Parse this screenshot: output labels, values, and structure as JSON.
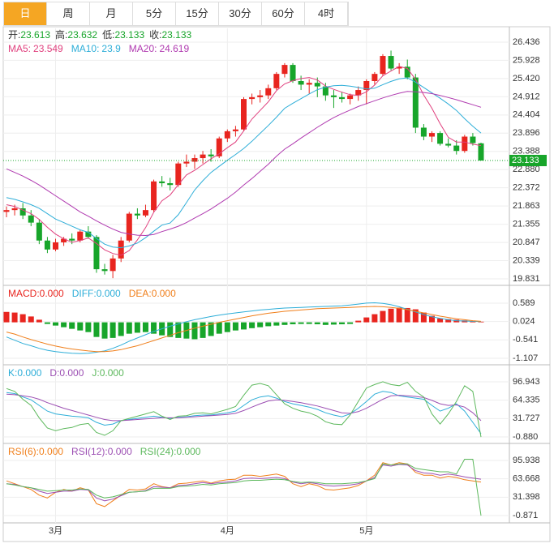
{
  "tabs": [
    "日",
    "周",
    "月",
    "5分",
    "15分",
    "30分",
    "60分",
    "4时"
  ],
  "selected_tab": 0,
  "chart_data": [
    {
      "type": "candlestick",
      "categories": [
        null,
        null,
        null,
        null,
        null,
        null,
        "3月",
        null,
        null,
        null,
        null,
        null,
        null,
        null,
        null,
        null,
        null,
        null,
        null,
        null,
        null,
        null,
        null,
        null,
        null,
        null,
        null,
        "4月",
        null,
        null,
        null,
        null,
        null,
        null,
        null,
        null,
        null,
        null,
        null,
        null,
        null,
        null,
        null,
        null,
        "5月",
        null,
        null,
        null,
        null,
        null,
        null,
        null,
        null,
        null,
        null,
        null,
        null,
        null,
        null
      ],
      "ohlc_labels": [
        "开:",
        "高:",
        "低:",
        "收:"
      ],
      "open": [
        21.7,
        21.75,
        21.8,
        21.6,
        21.4,
        20.9,
        20.65,
        20.85,
        20.95,
        20.9,
        21.15,
        21.0,
        20.1,
        20.05,
        20.4,
        20.9,
        21.65,
        21.6,
        21.75,
        22.55,
        22.5,
        22.45,
        23.05,
        23.1,
        23.2,
        23.3,
        23.25,
        23.75,
        23.95,
        24.0,
        24.85,
        24.9,
        24.95,
        25.15,
        25.55,
        25.8,
        25.35,
        25.25,
        25.3,
        25.2,
        24.95,
        24.9,
        24.85,
        24.95,
        25.1,
        25.35,
        25.55,
        26.05,
        25.7,
        25.75,
        25.45,
        24.05,
        23.8,
        23.9,
        23.6,
        23.55,
        23.4,
        23.8,
        23.613
      ],
      "high": [
        21.85,
        21.9,
        21.95,
        21.75,
        21.5,
        21.0,
        20.95,
        21.0,
        21.1,
        21.2,
        21.3,
        21.05,
        20.25,
        20.5,
        21.0,
        21.7,
        21.8,
        21.9,
        22.6,
        22.7,
        22.65,
        23.1,
        23.3,
        23.3,
        23.4,
        23.45,
        23.8,
        24.0,
        24.1,
        24.9,
        25.0,
        25.1,
        25.25,
        25.6,
        25.85,
        25.85,
        25.5,
        25.4,
        25.45,
        25.3,
        25.1,
        25.05,
        25.0,
        25.2,
        25.4,
        25.6,
        26.1,
        26.2,
        25.85,
        25.95,
        25.55,
        24.15,
        23.95,
        23.95,
        23.75,
        23.7,
        23.85,
        23.9,
        23.632
      ],
      "low": [
        21.55,
        21.6,
        21.5,
        21.3,
        20.8,
        20.55,
        20.6,
        20.75,
        20.8,
        20.85,
        20.95,
        20.0,
        19.95,
        19.85,
        20.3,
        20.85,
        21.5,
        21.55,
        21.7,
        22.4,
        22.3,
        22.4,
        22.95,
        22.9,
        23.05,
        23.1,
        23.2,
        23.65,
        23.8,
        23.95,
        24.7,
        24.75,
        24.85,
        25.1,
        25.45,
        25.3,
        25.1,
        25.0,
        24.9,
        24.8,
        24.6,
        24.75,
        24.7,
        24.8,
        24.7,
        25.25,
        25.5,
        25.65,
        25.55,
        25.4,
        23.9,
        23.7,
        23.65,
        23.55,
        23.5,
        23.3,
        23.35,
        23.55,
        23.133
      ],
      "close": [
        21.75,
        21.8,
        21.6,
        21.4,
        20.9,
        20.65,
        20.85,
        20.95,
        20.9,
        21.15,
        21.0,
        20.1,
        20.05,
        20.4,
        20.9,
        21.65,
        21.6,
        21.75,
        22.55,
        22.5,
        22.45,
        23.05,
        23.1,
        23.2,
        23.3,
        23.25,
        23.75,
        23.95,
        24.0,
        24.85,
        24.9,
        24.95,
        25.15,
        25.55,
        25.8,
        25.35,
        25.25,
        25.3,
        25.2,
        24.95,
        24.9,
        24.85,
        24.95,
        25.1,
        25.35,
        25.55,
        26.05,
        25.7,
        25.75,
        25.45,
        24.05,
        23.8,
        23.9,
        23.6,
        23.55,
        23.4,
        23.8,
        23.62,
        23.133
      ],
      "up_color": "#e8251f",
      "down_color": "#17a52a",
      "series": [
        {
          "name": "MA5:",
          "color": "#e0407e",
          "values": [
            21.9,
            21.85,
            21.75,
            21.65,
            21.49,
            21.27,
            21.08,
            20.95,
            20.85,
            20.9,
            20.97,
            20.82,
            20.64,
            20.54,
            20.49,
            20.62,
            20.92,
            21.26,
            21.69,
            22.01,
            22.17,
            22.46,
            22.73,
            22.86,
            23.02,
            23.18,
            23.32,
            23.49,
            23.65,
            23.96,
            24.29,
            24.53,
            24.77,
            25.08,
            25.27,
            25.36,
            25.42,
            25.45,
            25.38,
            25.21,
            25.12,
            25.04,
            24.97,
            24.95,
            25.05,
            25.24,
            25.5,
            25.63,
            25.76,
            25.7,
            25.4,
            24.96,
            24.59,
            24.16,
            23.78,
            23.65,
            23.65,
            23.59,
            23.549
          ]
        },
        {
          "name": "MA10:",
          "color": "#2eaed8",
          "values": [
            22.1,
            22.05,
            21.98,
            21.9,
            21.8,
            21.65,
            21.5,
            21.4,
            21.3,
            21.2,
            21.13,
            20.96,
            20.8,
            20.72,
            20.7,
            20.75,
            20.83,
            20.98,
            21.16,
            21.33,
            21.39,
            21.62,
            21.96,
            22.31,
            22.57,
            22.8,
            22.97,
            23.14,
            23.3,
            23.47,
            23.67,
            23.89,
            24.11,
            24.34,
            24.59,
            24.73,
            24.86,
            24.99,
            25.11,
            25.18,
            25.22,
            25.23,
            25.21,
            25.17,
            25.13,
            25.15,
            25.25,
            25.34,
            25.41,
            25.44,
            25.32,
            25.17,
            25.02,
            24.87,
            24.71,
            24.53,
            24.3,
            24.09,
            23.9
          ]
        },
        {
          "name": "MA20:",
          "color": "#b03ab0",
          "values": [
            22.9,
            22.8,
            22.7,
            22.58,
            22.45,
            22.3,
            22.15,
            22.0,
            21.85,
            21.7,
            21.58,
            21.45,
            21.33,
            21.22,
            21.13,
            21.08,
            21.05,
            21.04,
            21.07,
            21.15,
            21.22,
            21.3,
            21.4,
            21.53,
            21.65,
            21.78,
            21.93,
            22.08,
            22.25,
            22.45,
            22.63,
            22.83,
            23.03,
            23.25,
            23.45,
            23.6,
            23.76,
            23.91,
            24.06,
            24.2,
            24.33,
            24.44,
            24.54,
            24.64,
            24.72,
            24.8,
            24.88,
            24.95,
            25.01,
            25.06,
            25.05,
            25.03,
            25.0,
            24.95,
            24.89,
            24.83,
            24.76,
            24.69,
            24.619
          ]
        }
      ],
      "ylim": [
        19.65,
        26.82
      ],
      "yticks": [
        26.436,
        25.928,
        {
          "value": 25.42,
          "label": "25.420"
        },
        24.912,
        24.404,
        23.896,
        23.388,
        {
          "value": 22.88,
          "label": "22.880"
        },
        22.372,
        21.863,
        21.355,
        20.847,
        20.339,
        19.831
      ],
      "grid": true
    },
    {
      "type": "macd",
      "series": [
        {
          "name": "MACD:",
          "readout": "0.000",
          "kind": "bar",
          "color": "#e8251f",
          "down_color": "#17a52a",
          "values": [
            0.32,
            0.3,
            0.25,
            0.18,
            0.08,
            -0.05,
            -0.1,
            -0.15,
            -0.2,
            -0.25,
            -0.3,
            -0.45,
            -0.5,
            -0.48,
            -0.42,
            -0.35,
            -0.32,
            -0.3,
            -0.35,
            -0.4,
            -0.45,
            -0.48,
            -0.5,
            -0.52,
            -0.48,
            -0.42,
            -0.35,
            -0.3,
            -0.25,
            -0.22,
            -0.18,
            -0.15,
            -0.12,
            -0.1,
            -0.08,
            -0.06,
            -0.05,
            -0.05,
            -0.06,
            -0.08,
            -0.07,
            -0.06,
            -0.05,
            0.05,
            0.15,
            0.25,
            0.35,
            0.42,
            0.45,
            0.44,
            0.4,
            0.3,
            0.2,
            0.12,
            0.1,
            0.08,
            0.06,
            0.04,
            0.02
          ]
        },
        {
          "name": "DIFF:",
          "readout": "0.000",
          "kind": "line",
          "color": "#2eaed8",
          "values": [
            -0.45,
            -0.55,
            -0.65,
            -0.72,
            -0.8,
            -0.86,
            -0.9,
            -0.93,
            -0.95,
            -0.96,
            -0.95,
            -0.92,
            -0.88,
            -0.8,
            -0.7,
            -0.58,
            -0.48,
            -0.38,
            -0.28,
            -0.2,
            -0.12,
            -0.05,
            0.02,
            0.08,
            0.13,
            0.18,
            0.22,
            0.26,
            0.29,
            0.32,
            0.35,
            0.38,
            0.4,
            0.42,
            0.44,
            0.45,
            0.46,
            0.47,
            0.48,
            0.49,
            0.5,
            0.51,
            0.53,
            0.56,
            0.59,
            0.6,
            0.58,
            0.54,
            0.48,
            0.4,
            0.32,
            0.24,
            0.17,
            0.12,
            0.08,
            0.05,
            0.04,
            0.03,
            0.02
          ]
        },
        {
          "name": "DEA:",
          "readout": "0.000",
          "kind": "line",
          "color": "#f07f1b",
          "values": [
            -0.3,
            -0.36,
            -0.45,
            -0.53,
            -0.6,
            -0.67,
            -0.73,
            -0.78,
            -0.82,
            -0.85,
            -0.88,
            -0.9,
            -0.9,
            -0.88,
            -0.84,
            -0.78,
            -0.72,
            -0.64,
            -0.56,
            -0.48,
            -0.4,
            -0.32,
            -0.25,
            -0.18,
            -0.12,
            -0.06,
            0.0,
            0.05,
            0.1,
            0.15,
            0.2,
            0.24,
            0.28,
            0.31,
            0.34,
            0.36,
            0.38,
            0.4,
            0.42,
            0.43,
            0.44,
            0.45,
            0.46,
            0.47,
            0.48,
            0.49,
            0.48,
            0.46,
            0.43,
            0.39,
            0.34,
            0.29,
            0.24,
            0.19,
            0.15,
            0.11,
            0.08,
            0.05,
            0.03
          ]
        }
      ],
      "ylim": [
        -1.306,
        1.137
      ],
      "yticks": [
        0.589,
        0.024,
        -0.541,
        -1.107
      ],
      "grid": true
    },
    {
      "type": "line",
      "series": [
        {
          "name": "K:",
          "readout": "0.000",
          "color": "#2eaed8",
          "values": [
            78,
            76,
            70,
            65,
            55,
            45,
            40,
            38,
            36,
            35,
            33,
            25,
            20,
            22,
            28,
            30,
            32,
            34,
            36,
            34,
            32,
            34,
            35,
            37,
            38,
            38,
            40,
            42,
            45,
            55,
            65,
            70,
            72,
            68,
            62,
            58,
            55,
            52,
            48,
            42,
            38,
            35,
            40,
            50,
            62,
            75,
            80,
            78,
            72,
            70,
            68,
            66,
            55,
            45,
            50,
            58,
            45,
            25,
            5
          ]
        },
        {
          "name": "D:",
          "readout": "0.000",
          "color": "#9c4fb3",
          "values": [
            75,
            74,
            72,
            70,
            66,
            60,
            55,
            50,
            46,
            42,
            38,
            34,
            30,
            28,
            28,
            29,
            30,
            31,
            32,
            33,
            33,
            33,
            34,
            35,
            36,
            37,
            38,
            39,
            41,
            46,
            52,
            58,
            63,
            65,
            64,
            62,
            60,
            57,
            54,
            50,
            46,
            42,
            41,
            44,
            50,
            58,
            66,
            72,
            73,
            72,
            71,
            69,
            64,
            58,
            55,
            56,
            52,
            42,
            28
          ]
        },
        {
          "name": "J:",
          "readout": "0.000",
          "color": "#5cb85c",
          "values": [
            85,
            80,
            66,
            55,
            33,
            15,
            10,
            14,
            16,
            21,
            23,
            7,
            2,
            10,
            28,
            32,
            36,
            40,
            44,
            36,
            30,
            36,
            37,
            41,
            42,
            40,
            44,
            48,
            53,
            73,
            91,
            94,
            90,
            74,
            58,
            50,
            45,
            42,
            36,
            26,
            22,
            21,
            38,
            62,
            86,
            92,
            97,
            92,
            90,
            96,
            80,
            70,
            40,
            22,
            40,
            62,
            90,
            80,
            -1
          ]
        }
      ],
      "ylim": [
        -12.37,
        127.11
      ],
      "yticks": [
        96.943,
        64.335,
        31.727,
        {
          "value": -0.88,
          "label": "-0.880"
        }
      ],
      "grid": true
    },
    {
      "type": "line",
      "series": [
        {
          "name": "RSI(6):",
          "readout": "0.000",
          "color": "#f07f1b",
          "values": [
            60,
            55,
            50,
            45,
            35,
            30,
            40,
            45,
            42,
            48,
            44,
            20,
            15,
            25,
            35,
            45,
            44,
            46,
            55,
            50,
            48,
            55,
            56,
            58,
            60,
            56,
            60,
            62,
            63,
            70,
            70,
            68,
            70,
            72,
            68,
            55,
            50,
            55,
            52,
            45,
            44,
            46,
            48,
            52,
            60,
            70,
            92,
            88,
            92,
            90,
            75,
            70,
            70,
            65,
            68,
            66,
            62,
            60,
            58
          ]
        },
        {
          "name": "RSI(12):",
          "readout": "0.000",
          "color": "#9c4fb3",
          "values": [
            55,
            54,
            50,
            48,
            42,
            38,
            40,
            42,
            42,
            45,
            44,
            30,
            25,
            28,
            34,
            40,
            41,
            43,
            50,
            49,
            48,
            52,
            53,
            55,
            57,
            55,
            57,
            58,
            60,
            64,
            65,
            64,
            65,
            66,
            64,
            58,
            55,
            57,
            55,
            52,
            51,
            52,
            53,
            55,
            60,
            66,
            88,
            86,
            89,
            88,
            78,
            74,
            73,
            70,
            72,
            70,
            67,
            65,
            63
          ]
        },
        {
          "name": "RSI(24):",
          "readout": "0.000",
          "color": "#5cb85c",
          "values": [
            55,
            53,
            50,
            48,
            45,
            42,
            43,
            44,
            44,
            46,
            45,
            35,
            30,
            32,
            36,
            40,
            41,
            42,
            47,
            47,
            47,
            50,
            51,
            52,
            54,
            53,
            55,
            56,
            57,
            60,
            61,
            61,
            62,
            63,
            62,
            59,
            57,
            58,
            57,
            55,
            55,
            55,
            56,
            57,
            60,
            64,
            90,
            88,
            90,
            90,
            82,
            80,
            78,
            76,
            76,
            72,
            98,
            98,
            -0.87
          ]
        }
      ],
      "ylim": [
        -13.66,
        125.79
      ],
      "yticks": [
        95.938,
        63.668,
        31.398,
        -0.871
      ],
      "grid": true
    }
  ]
}
